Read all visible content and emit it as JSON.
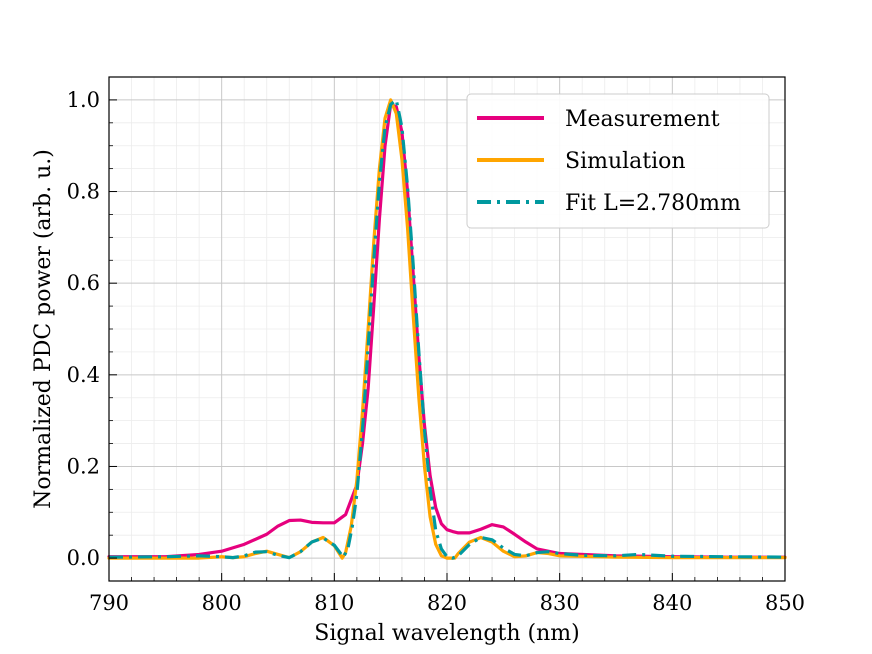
{
  "chart_data": {
    "type": "line",
    "title": "",
    "xlabel": "Signal wavelength (nm)",
    "ylabel": "Normalized PDC power (arb. u.)",
    "xlim": [
      790,
      850
    ],
    "ylim": [
      -0.05,
      1.05
    ],
    "xticks": [
      790,
      800,
      810,
      820,
      830,
      840,
      850
    ],
    "xtick_labels": [
      "790",
      "800",
      "810",
      "820",
      "830",
      "840",
      "850"
    ],
    "yticks": [
      0.0,
      0.2,
      0.4,
      0.6,
      0.8,
      1.0
    ],
    "ytick_labels": [
      "0.0",
      "0.2",
      "0.4",
      "0.6",
      "0.8",
      "1.0"
    ],
    "grid": true,
    "minor_grid": true,
    "legend_position": "top-right",
    "series": [
      {
        "name": "Measurement",
        "color": "#e6007e",
        "style": "solid",
        "x": [
          790,
          795,
          798,
          800,
          802,
          804,
          805,
          806,
          807,
          808,
          809,
          810,
          811,
          812,
          812.5,
          813,
          813.5,
          814,
          814.5,
          815,
          815.5,
          816,
          816.5,
          817,
          817.5,
          818,
          818.5,
          819,
          819.5,
          820,
          820.5,
          821,
          822,
          823,
          824,
          825,
          826,
          827,
          828,
          830,
          835,
          840,
          845,
          850
        ],
        "y": [
          0.003,
          0.003,
          0.008,
          0.015,
          0.03,
          0.052,
          0.07,
          0.082,
          0.083,
          0.078,
          0.077,
          0.077,
          0.095,
          0.16,
          0.25,
          0.37,
          0.55,
          0.74,
          0.9,
          0.99,
          0.985,
          0.93,
          0.8,
          0.62,
          0.44,
          0.29,
          0.18,
          0.11,
          0.075,
          0.062,
          0.058,
          0.055,
          0.055,
          0.063,
          0.073,
          0.068,
          0.052,
          0.035,
          0.02,
          0.01,
          0.005,
          0.003,
          0.002,
          0.002
        ]
      },
      {
        "name": "Simulation",
        "color": "#ffa500",
        "style": "solid",
        "x": [
          790,
          798,
          800,
          801,
          802,
          803,
          804,
          805,
          806,
          807,
          808,
          809,
          810,
          810.7,
          811,
          811.5,
          812,
          812.5,
          813,
          813.5,
          814,
          814.5,
          815,
          815.5,
          816,
          816.5,
          817,
          817.5,
          818,
          818.5,
          819,
          819.5,
          820,
          820.7,
          821,
          822,
          823,
          824,
          825,
          826,
          827,
          828,
          829,
          830,
          835,
          840,
          850
        ],
        "y": [
          0,
          0,
          0.003,
          0.001,
          0.003,
          0.01,
          0.015,
          0.008,
          0.001,
          0.014,
          0.035,
          0.045,
          0.027,
          0.0,
          0.012,
          0.07,
          0.17,
          0.32,
          0.5,
          0.69,
          0.85,
          0.96,
          1.0,
          0.97,
          0.87,
          0.72,
          0.53,
          0.35,
          0.2,
          0.09,
          0.03,
          0.005,
          0.0,
          0.0,
          0.01,
          0.035,
          0.045,
          0.035,
          0.015,
          0.003,
          0.005,
          0.012,
          0.01,
          0.005,
          0.002,
          0.001,
          0.001
        ]
      },
      {
        "name": "Fit L=2.780mm",
        "color": "#00999f",
        "style": "dashdot",
        "x": [
          790,
          795,
          798,
          800,
          801,
          802,
          803,
          804,
          805,
          806,
          807,
          808,
          809,
          810,
          810.8,
          811.2,
          811.6,
          812,
          812.5,
          813,
          813.5,
          814,
          814.5,
          815,
          815.5,
          816,
          816.5,
          817,
          817.5,
          818,
          818.5,
          819,
          819.5,
          820,
          820.5,
          821,
          822,
          823,
          824,
          825,
          826,
          827,
          828,
          829,
          830,
          832,
          835,
          837,
          840,
          845,
          850
        ],
        "y": [
          0.002,
          0.003,
          0.005,
          0.003,
          0.001,
          0.005,
          0.013,
          0.014,
          0.006,
          0.001,
          0.014,
          0.035,
          0.044,
          0.028,
          0.002,
          0.02,
          0.07,
          0.14,
          0.28,
          0.46,
          0.65,
          0.82,
          0.94,
          0.99,
          1.0,
          0.94,
          0.81,
          0.64,
          0.45,
          0.28,
          0.15,
          0.06,
          0.02,
          0.003,
          0.0,
          0.005,
          0.03,
          0.045,
          0.04,
          0.022,
          0.008,
          0.005,
          0.012,
          0.014,
          0.01,
          0.006,
          0.005,
          0.008,
          0.004,
          0.003,
          0.002
        ]
      }
    ]
  }
}
